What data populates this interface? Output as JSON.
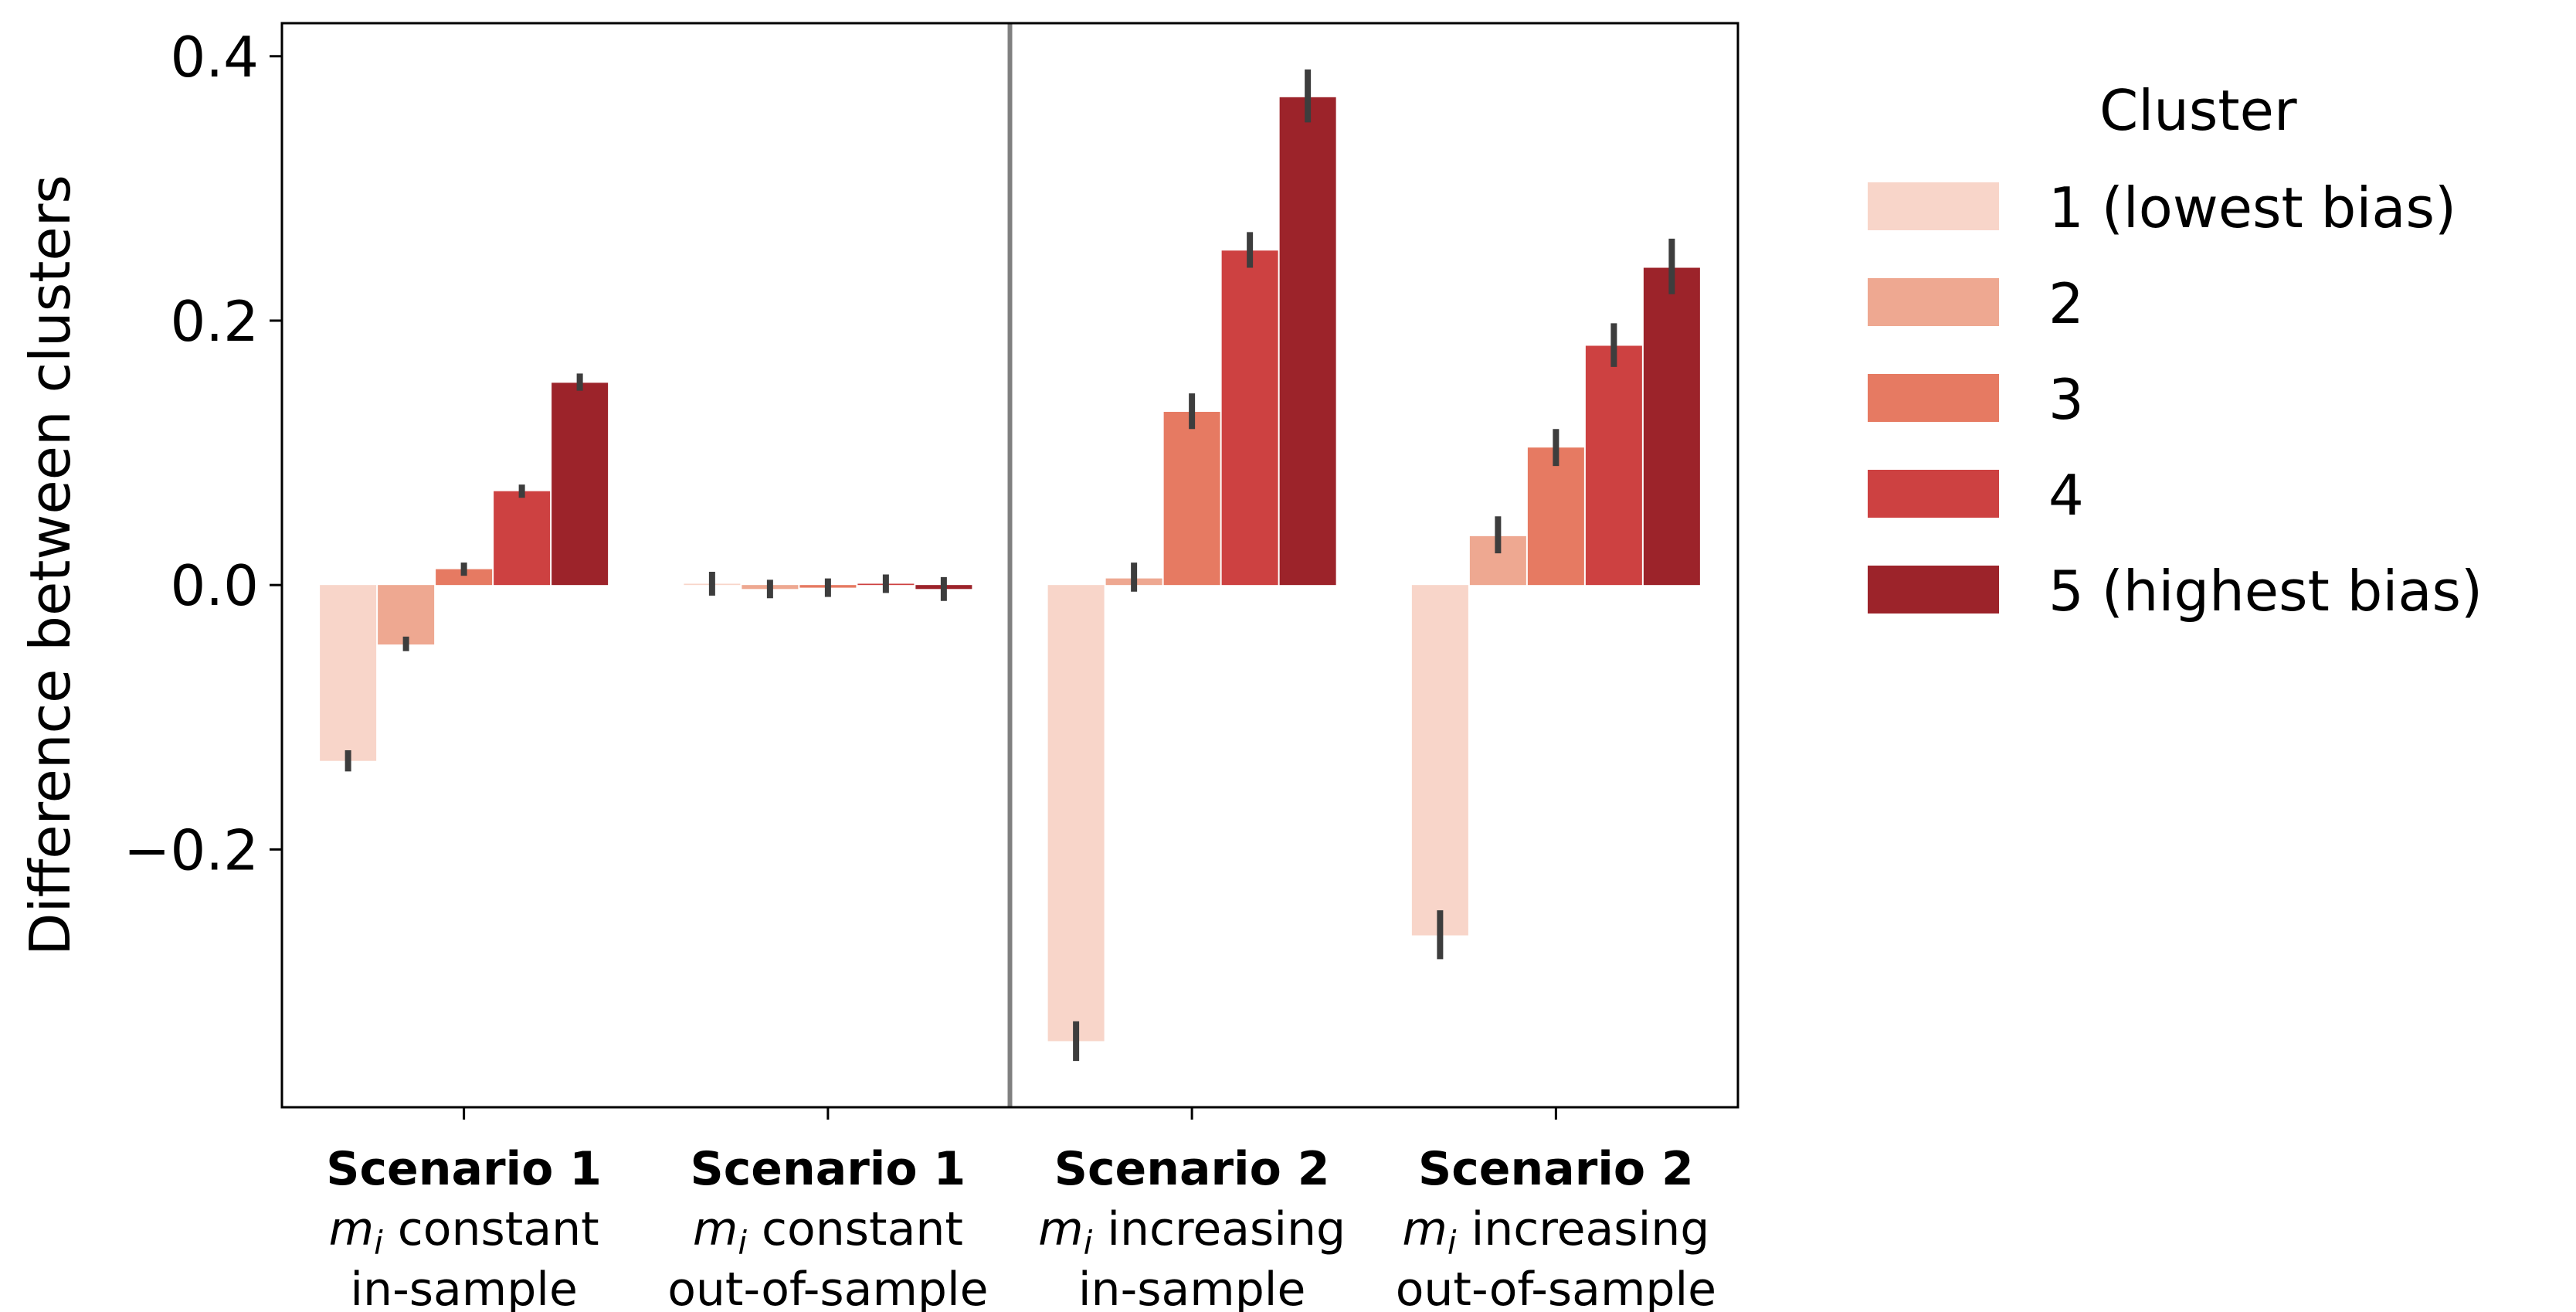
{
  "chart_data": {
    "type": "bar",
    "ylabel": "Difference between clusters",
    "xlabel": "",
    "title": "",
    "ylim": [
      -0.395,
      0.425
    ],
    "yticks": [
      -0.2,
      0.0,
      0.2,
      0.4
    ],
    "ytick_labels": [
      "−0.2",
      "0.0",
      "0.2",
      "0.4"
    ],
    "grid": false,
    "legend": {
      "title": "Cluster",
      "placement": "outside-right"
    },
    "categories": [
      {
        "title": "Scenario 1",
        "line1_var": "m",
        "line1_sub": "i",
        "line1_rest": " constant",
        "line2": "in-sample"
      },
      {
        "title": "Scenario 1",
        "line1_var": "m",
        "line1_sub": "i",
        "line1_rest": " constant",
        "line2": "out-of-sample"
      },
      {
        "title": "Scenario 2",
        "line1_var": "m",
        "line1_sub": "i",
        "line1_rest": " increasing",
        "line2": "in-sample"
      },
      {
        "title": "Scenario 2",
        "line1_var": "m",
        "line1_sub": "i",
        "line1_rest": " increasing",
        "line2": "out-of-sample"
      }
    ],
    "series": [
      {
        "name": "1 (lowest bias)",
        "color": "#f8d5c9",
        "values": [
          -0.133,
          0.001,
          -0.345,
          -0.265
        ],
        "err_low": [
          -0.141,
          -0.008,
          -0.36,
          -0.283
        ],
        "err_high": [
          -0.125,
          0.01,
          -0.33,
          -0.246
        ]
      },
      {
        "name": "2",
        "color": "#eea891",
        "values": [
          -0.045,
          -0.003,
          0.005,
          0.037
        ],
        "err_low": [
          -0.05,
          -0.01,
          -0.005,
          0.024
        ],
        "err_high": [
          -0.039,
          0.004,
          0.017,
          0.052
        ]
      },
      {
        "name": "3",
        "color": "#e67a62",
        "values": [
          0.012,
          -0.002,
          0.131,
          0.104
        ],
        "err_low": [
          0.007,
          -0.009,
          0.118,
          0.09
        ],
        "err_high": [
          0.017,
          0.005,
          0.145,
          0.118
        ]
      },
      {
        "name": "4",
        "color": "#cd4141",
        "values": [
          0.071,
          0.001,
          0.253,
          0.181
        ],
        "err_low": [
          0.066,
          -0.006,
          0.24,
          0.165
        ],
        "err_high": [
          0.076,
          0.008,
          0.267,
          0.198
        ]
      },
      {
        "name": "5 (highest bias)",
        "color": "#9c232a",
        "values": [
          0.153,
          -0.003,
          0.369,
          0.24
        ],
        "err_low": [
          0.147,
          -0.012,
          0.35,
          0.22
        ],
        "err_high": [
          0.16,
          0.006,
          0.39,
          0.262
        ]
      }
    ],
    "separator_after_category": 1
  }
}
